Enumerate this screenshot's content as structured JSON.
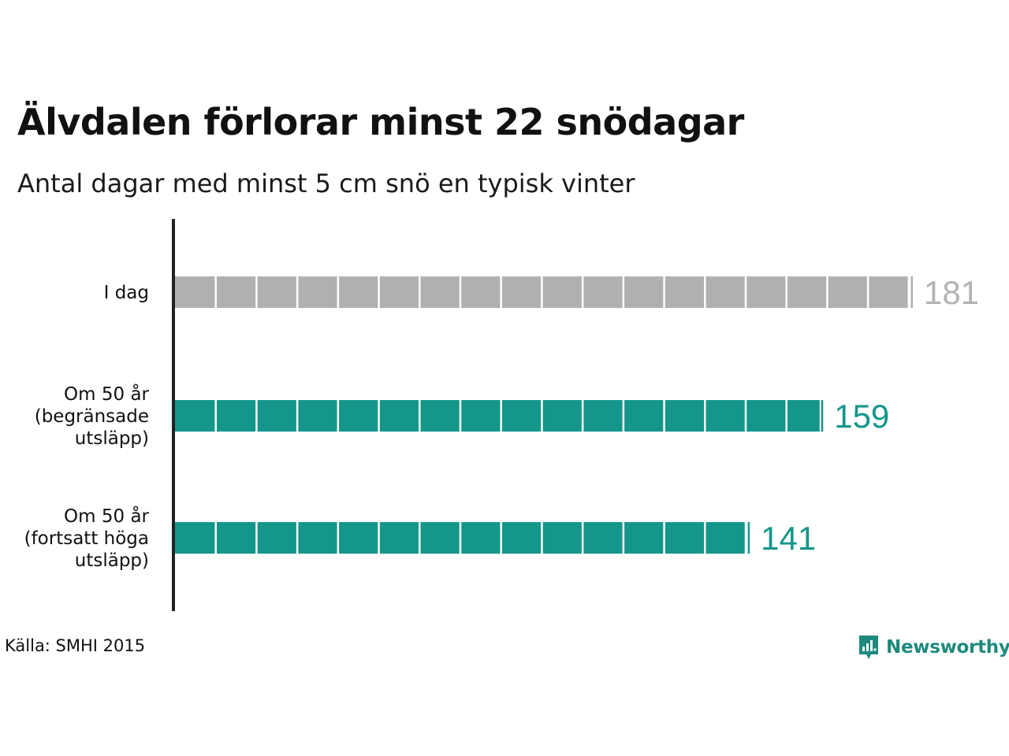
{
  "header": {
    "title": "Älvdalen förlorar minst 22 snödagar",
    "subtitle": "Antal dagar med minst 5 cm snö en typisk vinter"
  },
  "footer": {
    "source": "Källa: SMHI 2015",
    "brand": "Newsworthy",
    "brand_icon": "newsworthy-logo-icon"
  },
  "colors": {
    "today": "#b0b0b0",
    "today_label": "#b3b3b3",
    "future": "#14968a",
    "future_label": "#14968a",
    "axis": "#222222",
    "brand": "#1e8a7d"
  },
  "chart_data": {
    "type": "bar",
    "orientation": "horizontal",
    "categories": [
      [
        "I dag"
      ],
      [
        "Om 50 år",
        "(begränsade",
        "utsläpp)"
      ],
      [
        "Om 50 år",
        "(fortsatt höga",
        "utsläpp)"
      ]
    ],
    "values": [
      181,
      159,
      141
    ],
    "value_labels": [
      "181",
      "159",
      "141"
    ],
    "segment_size": 10,
    "xlim": [
      0,
      181
    ],
    "title": "Älvdalen förlorar minst 22 snödagar",
    "subtitle": "Antal dagar med minst 5 cm snö en typisk vinter",
    "grid": false,
    "legend": "none"
  }
}
